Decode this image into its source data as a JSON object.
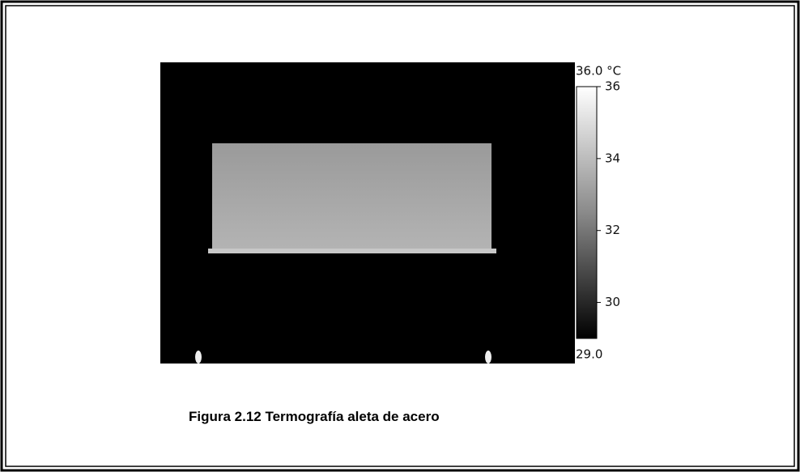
{
  "figure": {
    "colorbar": {
      "top_label": "36.0 °C",
      "bottom_label": "29.0",
      "lim": [
        29,
        36
      ],
      "ticks": [
        30,
        32,
        34,
        36
      ]
    },
    "caption": "Figura 2.12 Termografía aleta de acero"
  }
}
